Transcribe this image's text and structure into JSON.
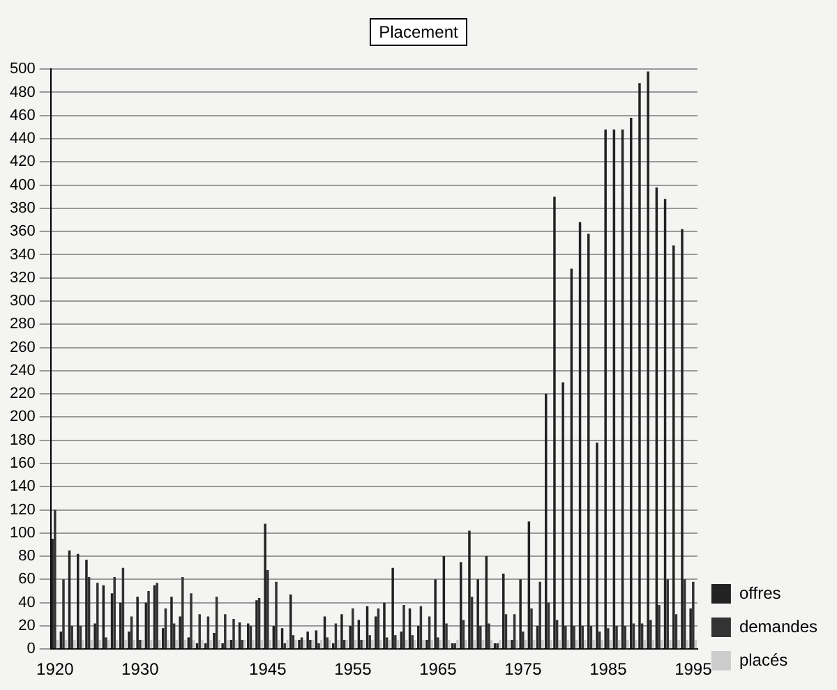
{
  "chart_data": {
    "type": "bar",
    "title": "Placement",
    "categories": [
      "1920",
      null,
      null,
      null,
      null,
      null,
      null,
      null,
      null,
      null,
      "1930",
      null,
      null,
      null,
      null,
      null,
      null,
      null,
      null,
      null,
      null,
      null,
      null,
      null,
      null,
      "1945",
      null,
      null,
      null,
      null,
      null,
      null,
      null,
      null,
      null,
      "1955",
      null,
      null,
      null,
      null,
      null,
      null,
      null,
      null,
      null,
      "1965",
      null,
      null,
      null,
      null,
      null,
      null,
      null,
      null,
      null,
      "1975",
      null,
      null,
      null,
      null,
      null,
      null,
      null,
      null,
      null,
      "1985",
      null,
      null,
      null,
      null,
      null,
      null,
      null,
      null,
      null,
      "1995"
    ],
    "series": [
      {
        "name": "offres",
        "color": "#222222",
        "values": [
          95,
          15,
          85,
          82,
          77,
          22,
          55,
          48,
          40,
          15,
          45,
          40,
          55,
          18,
          45,
          28,
          10,
          5,
          5,
          14,
          5,
          8,
          23,
          22,
          42,
          108,
          20,
          18,
          47,
          8,
          15,
          16,
          28,
          5,
          30,
          20,
          25,
          37,
          28,
          40,
          70,
          15,
          35,
          20,
          8,
          60,
          80,
          5,
          75,
          102,
          60,
          80,
          5,
          65,
          8,
          60,
          110,
          20,
          220,
          390,
          230,
          328,
          368,
          358,
          178,
          448,
          448,
          448,
          458,
          488,
          498,
          398,
          388,
          348,
          362,
          35
        ]
      },
      {
        "name": "demandes",
        "color": "#333333",
        "values": [
          120,
          60,
          20,
          20,
          62,
          57,
          10,
          62,
          70,
          28,
          8,
          50,
          57,
          35,
          22,
          62,
          48,
          30,
          28,
          45,
          30,
          26,
          8,
          20,
          44,
          68,
          58,
          5,
          12,
          10,
          8,
          5,
          10,
          22,
          8,
          35,
          8,
          12,
          35,
          10,
          12,
          38,
          12,
          37,
          28,
          10,
          22,
          5,
          25,
          45,
          20,
          22,
          5,
          30,
          30,
          15,
          35,
          58,
          40,
          25,
          20,
          20,
          20,
          20,
          15,
          18,
          20,
          20,
          22,
          22,
          25,
          38,
          60,
          30,
          60,
          58
        ]
      },
      {
        "name": "placés",
        "color": "#cccccc",
        "values": [
          8,
          8,
          8,
          8,
          8,
          8,
          8,
          8,
          8,
          8,
          8,
          8,
          8,
          8,
          8,
          8,
          8,
          8,
          8,
          8,
          8,
          8,
          8,
          8,
          8,
          8,
          8,
          8,
          8,
          8,
          8,
          8,
          8,
          8,
          8,
          8,
          8,
          8,
          8,
          8,
          8,
          8,
          8,
          8,
          8,
          8,
          8,
          8,
          8,
          8,
          8,
          8,
          8,
          8,
          8,
          8,
          8,
          8,
          8,
          8,
          8,
          8,
          8,
          8,
          8,
          8,
          8,
          8,
          8,
          8,
          8,
          8,
          8,
          8,
          8,
          8
        ]
      }
    ],
    "ylim": [
      0,
      500
    ],
    "yticks": [
      0,
      20,
      40,
      60,
      80,
      100,
      120,
      140,
      160,
      180,
      200,
      220,
      240,
      260,
      280,
      300,
      320,
      340,
      360,
      380,
      400,
      420,
      440,
      460,
      480,
      500
    ],
    "grid": "y",
    "legend": "bottom right"
  }
}
